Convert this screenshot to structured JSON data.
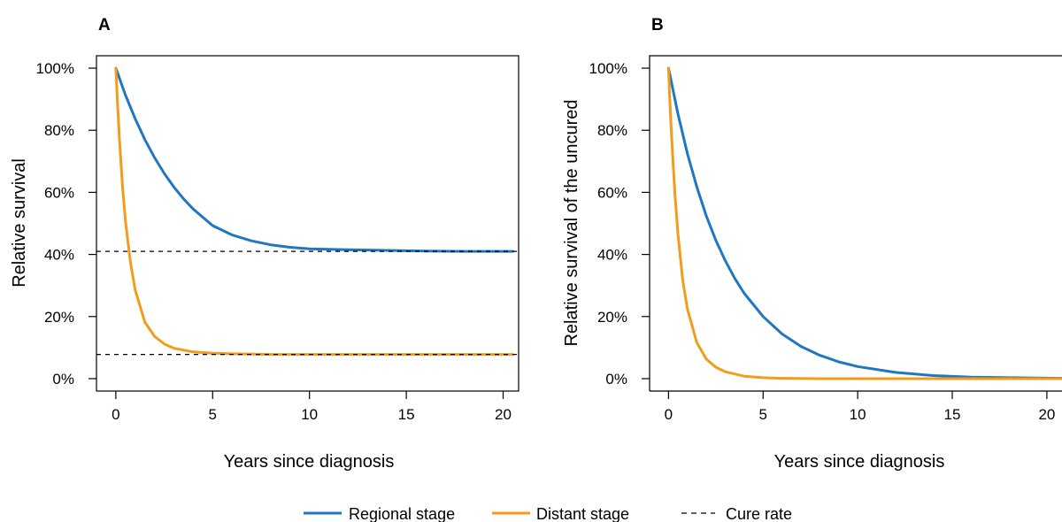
{
  "chart_data": [
    {
      "type": "line",
      "panel_label": "A",
      "xlabel": "Years since diagnosis",
      "ylabel": "Relative survival",
      "xlim": [
        -1,
        20.8
      ],
      "ylim": [
        -0.04,
        1.04
      ],
      "xticks": [
        0,
        5,
        10,
        15,
        20
      ],
      "xtick_labels": [
        "0",
        "5",
        "10",
        "15",
        "20"
      ],
      "yticks": [
        0,
        0.2,
        0.4,
        0.6,
        0.8,
        1.0
      ],
      "ytick_labels": [
        "0%",
        "20%",
        "40%",
        "60%",
        "80%",
        "100%"
      ],
      "grid": false,
      "series": [
        {
          "key": "regional",
          "color": "#1f77c4",
          "x": [
            0,
            0.5,
            1,
            1.5,
            2,
            2.5,
            3,
            3.5,
            4,
            5,
            6,
            7,
            8,
            9,
            10,
            12,
            14,
            16,
            18,
            20.5
          ],
          "y": [
            1.0,
            0.913,
            0.837,
            0.77,
            0.712,
            0.661,
            0.617,
            0.579,
            0.546,
            0.493,
            0.463,
            0.444,
            0.431,
            0.423,
            0.418,
            0.415,
            0.413,
            0.411,
            0.41,
            0.41
          ]
        },
        {
          "key": "distant",
          "color": "#f39c1b",
          "x": [
            0,
            0.1,
            0.2,
            0.35,
            0.5,
            0.75,
            1,
            1.5,
            2,
            2.5,
            3,
            4,
            5,
            6,
            7,
            8,
            10,
            14,
            20.5
          ],
          "y": [
            1.0,
            0.869,
            0.756,
            0.616,
            0.507,
            0.376,
            0.285,
            0.182,
            0.136,
            0.112,
            0.098,
            0.086,
            0.082,
            0.08,
            0.079,
            0.078,
            0.078,
            0.078,
            0.078
          ]
        },
        {
          "key": "cure_regional",
          "color": "#000000",
          "dashed": true,
          "x": [
            -1,
            20.8
          ],
          "y": [
            0.41,
            0.41
          ]
        },
        {
          "key": "cure_distant",
          "color": "#000000",
          "dashed": true,
          "x": [
            -1,
            20.8
          ],
          "y": [
            0.078,
            0.078
          ]
        }
      ]
    },
    {
      "type": "line",
      "panel_label": "B",
      "xlabel": "Years since diagnosis",
      "ylabel": "Relative survival of the uncured",
      "xlim": [
        -1,
        20.8
      ],
      "ylim": [
        -0.04,
        1.04
      ],
      "xticks": [
        0,
        5,
        10,
        15,
        20
      ],
      "xtick_labels": [
        "0",
        "5",
        "10",
        "15",
        "20"
      ],
      "yticks": [
        0,
        0.2,
        0.4,
        0.6,
        0.8,
        1.0
      ],
      "ytick_labels": [
        "0%",
        "20%",
        "40%",
        "60%",
        "80%",
        "100%"
      ],
      "grid": false,
      "series": [
        {
          "key": "regional",
          "color": "#1f77c4",
          "x": [
            0,
            0.5,
            1,
            1.5,
            2,
            2.5,
            3,
            3.5,
            4,
            5,
            6,
            7,
            8,
            9,
            10,
            12,
            14,
            16,
            18,
            20.8
          ],
          "y": [
            1.0,
            0.852,
            0.724,
            0.617,
            0.524,
            0.446,
            0.38,
            0.323,
            0.275,
            0.2,
            0.144,
            0.104,
            0.075,
            0.054,
            0.039,
            0.02,
            0.01,
            0.005,
            0.003,
            0.001
          ]
        },
        {
          "key": "distant",
          "color": "#f39c1b",
          "x": [
            0,
            0.1,
            0.2,
            0.35,
            0.5,
            0.75,
            1,
            1.5,
            2,
            2.5,
            3,
            4,
            5,
            6,
            8,
            10,
            14,
            20.8
          ],
          "y": [
            1.0,
            0.857,
            0.735,
            0.584,
            0.465,
            0.317,
            0.224,
            0.116,
            0.063,
            0.037,
            0.022,
            0.008,
            0.003,
            0.001,
            0.0,
            0.0,
            0.0,
            0.0
          ]
        }
      ]
    }
  ],
  "legend": {
    "position": "bottom",
    "items": [
      {
        "label": "Regional stage",
        "color": "#1f77c4",
        "style": "solid"
      },
      {
        "label": "Distant stage",
        "color": "#f39c1b",
        "style": "solid"
      },
      {
        "label": "Cure rate",
        "color": "#000000",
        "style": "dashed"
      }
    ]
  }
}
